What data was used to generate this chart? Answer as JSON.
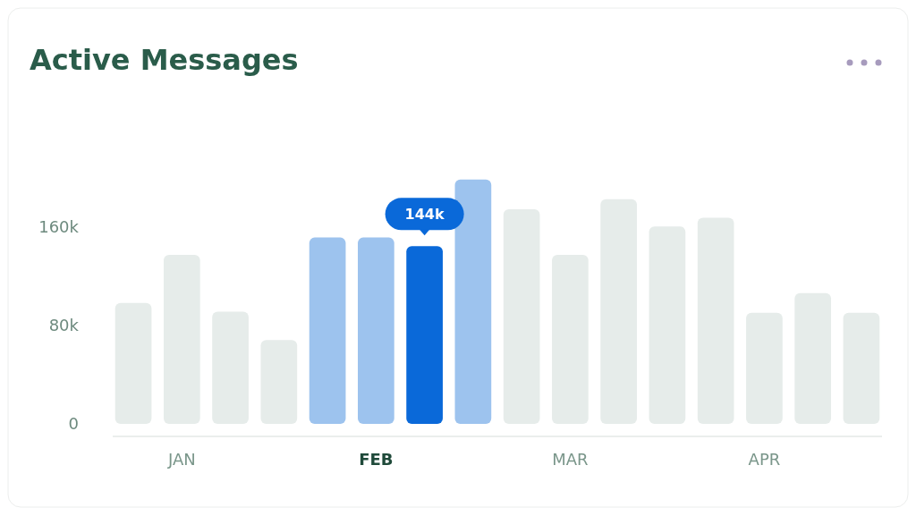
{
  "chart_data": {
    "type": "bar",
    "title": "Active Messages",
    "categories": [
      null,
      "JAN",
      null,
      null,
      null,
      "FEB",
      null,
      null,
      null,
      "MAR",
      null,
      null,
      null,
      "APR",
      null,
      null
    ],
    "values": [
      98,
      137,
      91,
      68,
      151,
      151,
      144,
      198,
      174,
      137,
      182,
      160,
      167,
      90,
      106,
      90
    ],
    "colors": [
      "#e6ecea",
      "#e6ecea",
      "#e6ecea",
      "#e6ecea",
      "#9dc3ee",
      "#9dc3ee",
      "#0a69d9",
      "#9dc3ee",
      "#e6ecea",
      "#e6ecea",
      "#e6ecea",
      "#e6ecea",
      "#e6ecea",
      "#e6ecea",
      "#e6ecea",
      "#e6ecea"
    ],
    "value_labels": [
      null,
      null,
      null,
      null,
      null,
      null,
      "144k",
      null,
      null,
      null,
      null,
      null,
      null,
      null,
      null,
      null
    ],
    "ylim": [
      0,
      200
    ],
    "yticks": [
      {
        "value": 0,
        "label": "0"
      },
      {
        "value": 80,
        "label": "80k"
      },
      {
        "value": 160,
        "label": "160k"
      }
    ],
    "grid": false
  }
}
